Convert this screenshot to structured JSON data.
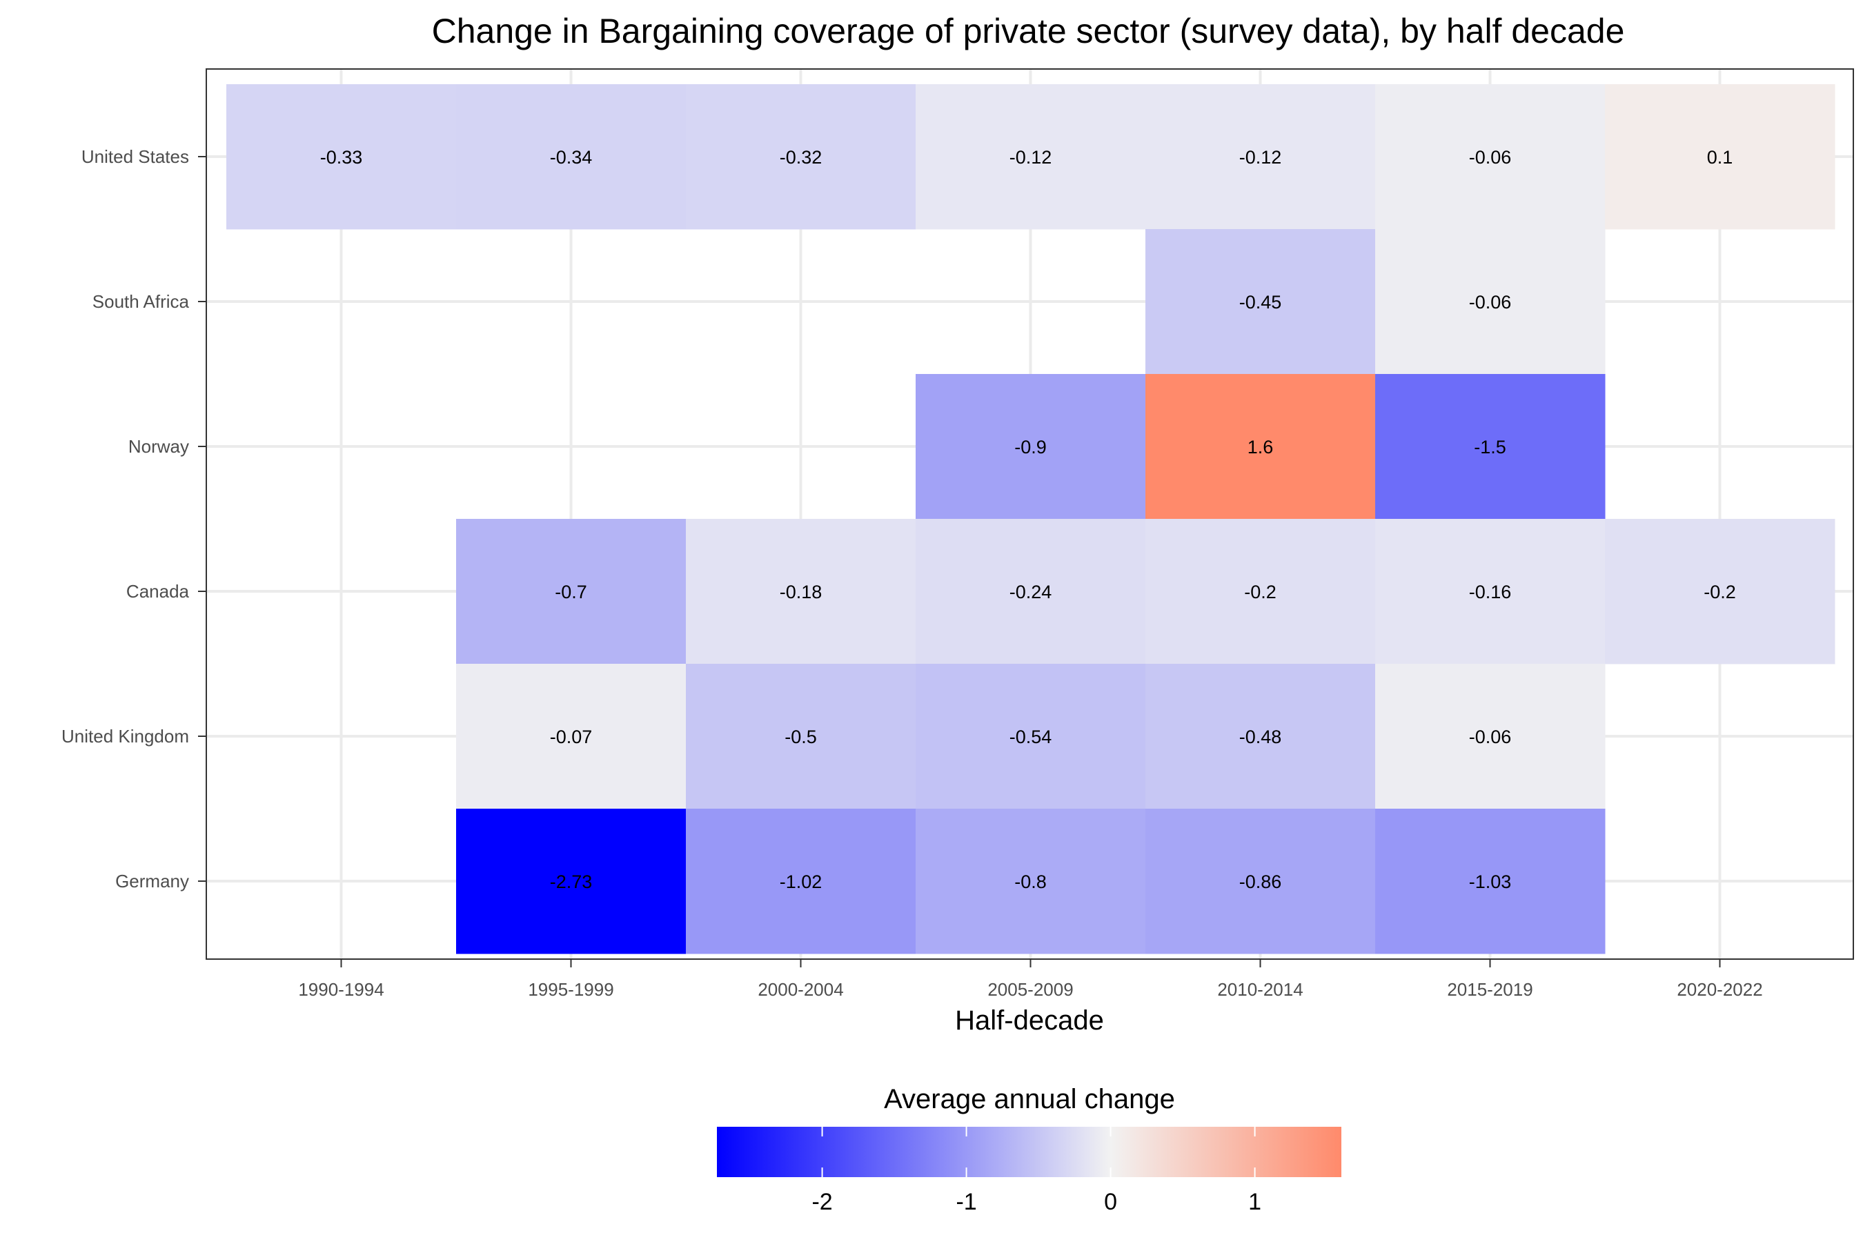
{
  "chart_data": {
    "type": "heatmap",
    "title": "Change in Bargaining coverage of private sector (survey data), by half decade",
    "xlabel": "Half-decade",
    "ylabel": "",
    "x_categories": [
      "1990-1994",
      "1995-1999",
      "2000-2004",
      "2005-2009",
      "2010-2014",
      "2015-2019",
      "2020-2022"
    ],
    "y_categories": [
      "United States",
      "South Africa",
      "Norway",
      "Canada",
      "United Kingdom",
      "Germany"
    ],
    "cells": [
      {
        "country": "United States",
        "period": "1990-1994",
        "value": -0.33,
        "label": "-0.33"
      },
      {
        "country": "United States",
        "period": "1995-1999",
        "value": -0.34,
        "label": "-0.34"
      },
      {
        "country": "United States",
        "period": "2000-2004",
        "value": -0.32,
        "label": "-0.32"
      },
      {
        "country": "United States",
        "period": "2005-2009",
        "value": -0.12,
        "label": "-0.12"
      },
      {
        "country": "United States",
        "period": "2010-2014",
        "value": -0.12,
        "label": "-0.12"
      },
      {
        "country": "United States",
        "period": "2015-2019",
        "value": -0.06,
        "label": "-0.06"
      },
      {
        "country": "United States",
        "period": "2020-2022",
        "value": 0.1,
        "label": "0.1"
      },
      {
        "country": "South Africa",
        "period": "2010-2014",
        "value": -0.45,
        "label": "-0.45"
      },
      {
        "country": "South Africa",
        "period": "2015-2019",
        "value": -0.06,
        "label": "-0.06"
      },
      {
        "country": "Norway",
        "period": "2005-2009",
        "value": -0.9,
        "label": "-0.9"
      },
      {
        "country": "Norway",
        "period": "2010-2014",
        "value": 1.6,
        "label": "1.6"
      },
      {
        "country": "Norway",
        "period": "2015-2019",
        "value": -1.5,
        "label": "-1.5"
      },
      {
        "country": "Canada",
        "period": "1995-1999",
        "value": -0.7,
        "label": "-0.7"
      },
      {
        "country": "Canada",
        "period": "2000-2004",
        "value": -0.18,
        "label": "-0.18"
      },
      {
        "country": "Canada",
        "period": "2005-2009",
        "value": -0.24,
        "label": "-0.24"
      },
      {
        "country": "Canada",
        "period": "2010-2014",
        "value": -0.2,
        "label": "-0.2"
      },
      {
        "country": "Canada",
        "period": "2015-2019",
        "value": -0.16,
        "label": "-0.16"
      },
      {
        "country": "Canada",
        "period": "2020-2022",
        "value": -0.2,
        "label": "-0.2"
      },
      {
        "country": "United Kingdom",
        "period": "1995-1999",
        "value": -0.07,
        "label": "-0.07"
      },
      {
        "country": "United Kingdom",
        "period": "2000-2004",
        "value": -0.5,
        "label": "-0.5"
      },
      {
        "country": "United Kingdom",
        "period": "2005-2009",
        "value": -0.54,
        "label": "-0.54"
      },
      {
        "country": "United Kingdom",
        "period": "2010-2014",
        "value": -0.48,
        "label": "-0.48"
      },
      {
        "country": "United Kingdom",
        "period": "2015-2019",
        "value": -0.06,
        "label": "-0.06"
      },
      {
        "country": "Germany",
        "period": "1995-1999",
        "value": -2.73,
        "label": "-2.73"
      },
      {
        "country": "Germany",
        "period": "2000-2004",
        "value": -1.02,
        "label": "-1.02"
      },
      {
        "country": "Germany",
        "period": "2005-2009",
        "value": -0.8,
        "label": "-0.8"
      },
      {
        "country": "Germany",
        "period": "2010-2014",
        "value": -0.86,
        "label": "-0.86"
      },
      {
        "country": "Germany",
        "period": "2015-2019",
        "value": -1.03,
        "label": "-1.03"
      }
    ],
    "legend": {
      "title": "Average annual change",
      "position": "bottom",
      "min": -2.73,
      "max": 1.6,
      "ticks": [
        -2,
        -1,
        0,
        1
      ],
      "tick_labels": [
        "-2",
        "-1",
        "0",
        "1"
      ],
      "colors": {
        "low": "#0000ff",
        "mid": "#f2f2f2",
        "high": "#ff8a6b"
      }
    },
    "grid": true,
    "colors": {
      "grid": "#ebebeb",
      "panel_border": "#333333",
      "text": "#000000",
      "axis_text": "#4d4d4d"
    }
  }
}
